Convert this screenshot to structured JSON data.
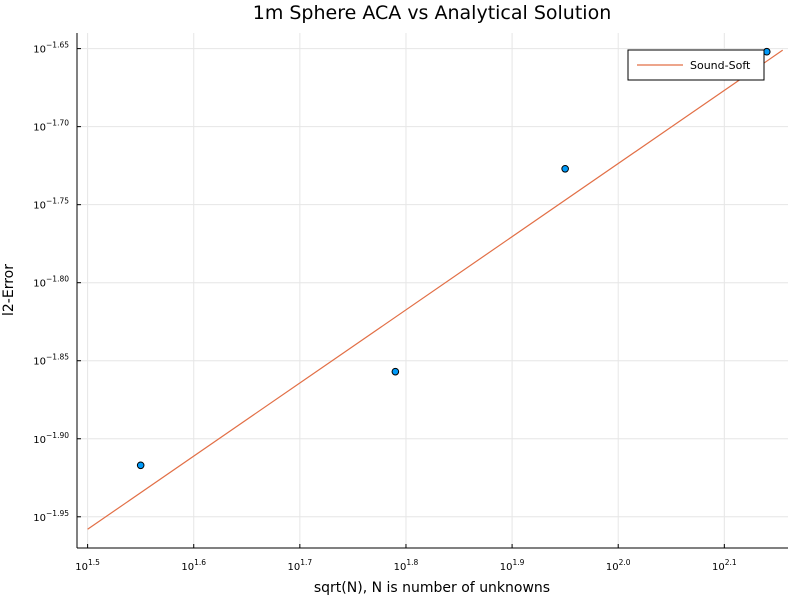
{
  "chart_data": {
    "type": "scatter",
    "title": "1m Sphere ACA vs Analytical Solution",
    "xlabel": "sqrt(N), N is number of unknowns",
    "ylabel": "l2-Error",
    "xscale": "log10",
    "yscale": "log10",
    "xlim_exponent": [
      1.49,
      2.16
    ],
    "ylim_exponent": [
      -1.97,
      -1.64
    ],
    "x_ticks": [
      {
        "base": "10",
        "exp": "1.5",
        "value": 1.5
      },
      {
        "base": "10",
        "exp": "1.6",
        "value": 1.6
      },
      {
        "base": "10",
        "exp": "1.7",
        "value": 1.7
      },
      {
        "base": "10",
        "exp": "1.8",
        "value": 1.8
      },
      {
        "base": "10",
        "exp": "1.9",
        "value": 1.9
      },
      {
        "base": "10",
        "exp": "2.0",
        "value": 2.0
      },
      {
        "base": "10",
        "exp": "2.1",
        "value": 2.1
      }
    ],
    "y_ticks": [
      {
        "base": "10",
        "exp": "−1.65",
        "value": -1.65
      },
      {
        "base": "10",
        "exp": "−1.70",
        "value": -1.7
      },
      {
        "base": "10",
        "exp": "−1.75",
        "value": -1.75
      },
      {
        "base": "10",
        "exp": "−1.80",
        "value": -1.8
      },
      {
        "base": "10",
        "exp": "−1.85",
        "value": -1.85
      },
      {
        "base": "10",
        "exp": "−1.90",
        "value": -1.9
      },
      {
        "base": "10",
        "exp": "−1.95",
        "value": -1.95
      }
    ],
    "grid": true,
    "legend_position": "top-right",
    "scatter_points_log10": [
      {
        "x": 1.55,
        "y": -1.917
      },
      {
        "x": 1.79,
        "y": -1.857
      },
      {
        "x": 1.95,
        "y": -1.727
      },
      {
        "x": 2.14,
        "y": -1.652
      }
    ],
    "series": [
      {
        "name": "Sound-Soft",
        "type": "line",
        "color": "#e26f46",
        "points_log10": [
          {
            "x": 1.5,
            "y": -1.958
          },
          {
            "x": 2.155,
            "y": -1.651
          }
        ]
      }
    ],
    "marker_color": "#009af9"
  }
}
